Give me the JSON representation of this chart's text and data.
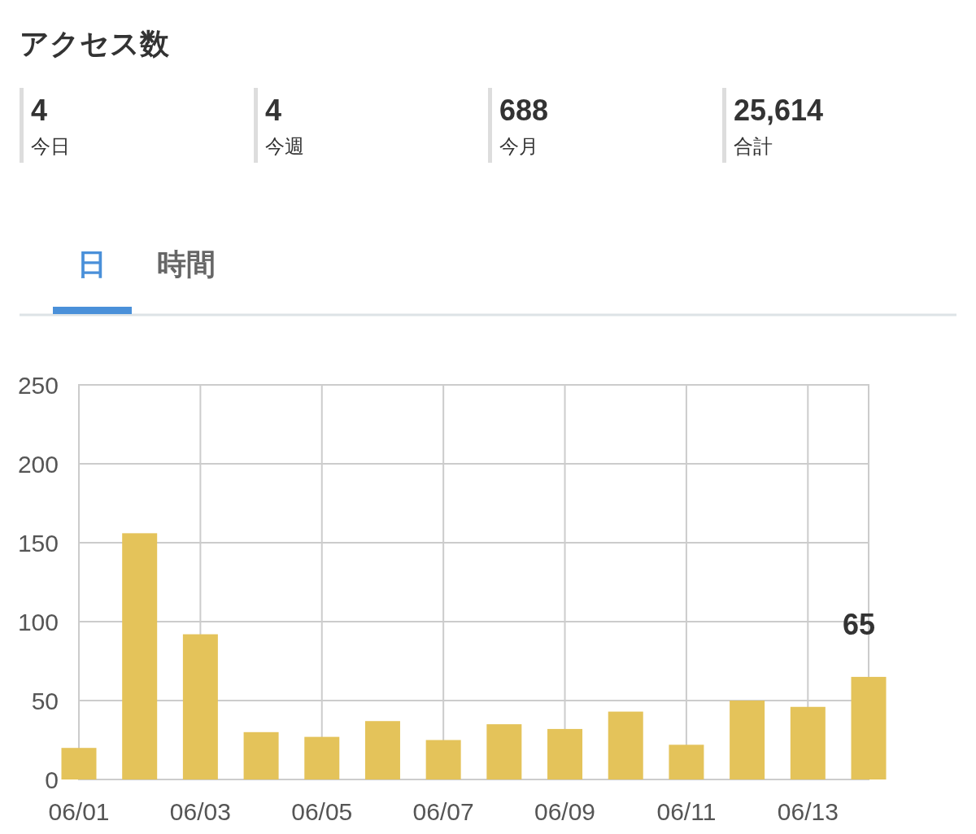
{
  "chart_data": [
    {
      "type": "other",
      "title": "アクセス数",
      "annotations": [
        "4",
        "今日",
        "4",
        "今週",
        "688",
        "今月",
        "25,614",
        "合計"
      ]
    },
    {
      "type": "bar",
      "annotations": [
        "日",
        "時間"
      ],
      "categories": [
        "06/01",
        null,
        "06/03",
        null,
        "06/05",
        null,
        "06/07",
        null,
        "06/09",
        null,
        "06/11",
        null,
        "06/13",
        null
      ],
      "values": [
        20,
        156,
        92,
        30,
        27,
        37,
        25,
        35,
        32,
        43,
        22,
        50,
        46,
        65
      ],
      "value_labels": [
        null,
        null,
        null,
        null,
        null,
        null,
        null,
        null,
        null,
        null,
        null,
        null,
        null,
        "65"
      ],
      "color": "#e4c35a",
      "ylim": [
        0,
        250
      ],
      "yticks": [
        0,
        50,
        100,
        150,
        200,
        250
      ],
      "grid": true
    }
  ]
}
